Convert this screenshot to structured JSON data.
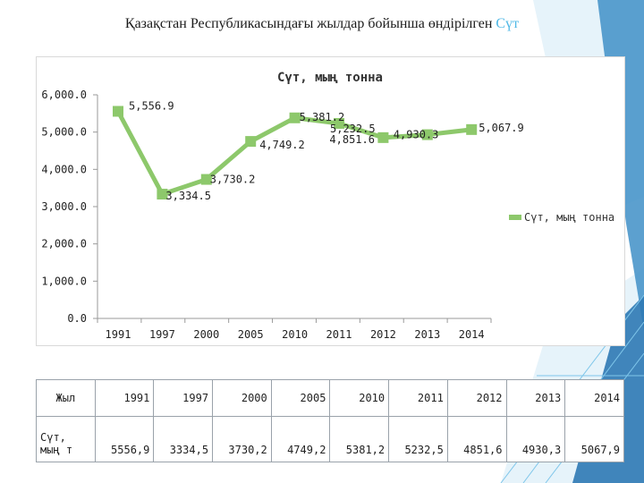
{
  "slide": {
    "title_main": "Қазақстан Республикасындағы жылдар бойынша өндірілген ",
    "title_accent": "Сүт"
  },
  "colors": {
    "series": "#8dc86b",
    "accent": "#4fb8e6"
  },
  "chart_data": {
    "type": "line",
    "title": "Сүт, мың тонна",
    "categories": [
      "1991",
      "1997",
      "2000",
      "2005",
      "2010",
      "2011",
      "2012",
      "2013",
      "2014"
    ],
    "series": [
      {
        "name": "Сүт, мың тонна",
        "values": [
          5556.9,
          3334.5,
          3730.2,
          4749.2,
          5381.2,
          5232.5,
          4851.6,
          4930.3,
          5067.9
        ]
      }
    ],
    "data_labels": [
      "5,556.9",
      "3,334.5",
      "3,730.2",
      "4,749.2",
      "5,381.2",
      "5,232.5",
      "4,851.6",
      "4,930.3",
      "5,067.9"
    ],
    "ylim": [
      0,
      6000
    ],
    "yticks": [
      0,
      1000,
      2000,
      3000,
      4000,
      5000,
      6000
    ],
    "ytick_labels": [
      "0.0",
      "1,000.0",
      "2,000.0",
      "3,000.0",
      "4,000.0",
      "5,000.0",
      "6,000.0"
    ],
    "grid": false,
    "legend_position": "right"
  },
  "table": {
    "row_year_label": "Жыл",
    "row_value_label": "Сүт, мың т",
    "years": [
      "1991",
      "1997",
      "2000",
      "2005",
      "2010",
      "2011",
      "2012",
      "2013",
      "2014"
    ],
    "values": [
      "5556,9",
      "3334,5",
      "3730,2",
      "4749,2",
      "5381,2",
      "5232,5",
      "4851,6",
      "4930,3",
      "5067,9"
    ]
  }
}
